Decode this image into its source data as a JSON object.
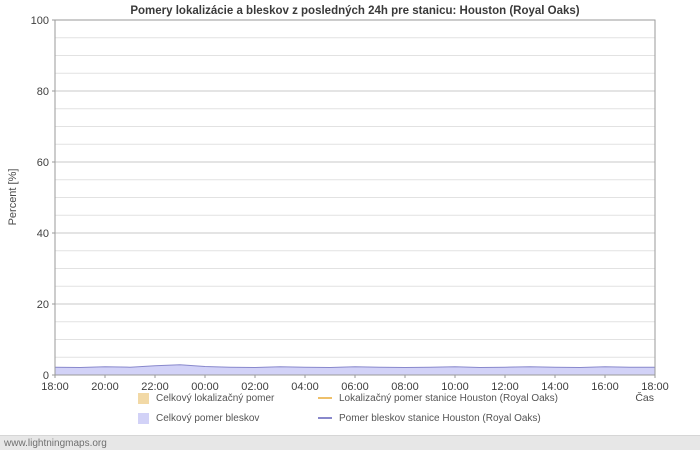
{
  "watermark": "www.lightningmaps.org",
  "chart_data": {
    "type": "area",
    "title": "Pomery lokalizácie a bleskov z posledných 24h pre stanicu: Houston (Royal Oaks)",
    "ylabel": "Percent  [%]",
    "xlabel": "Čas",
    "ylim": [
      0,
      100
    ],
    "y_major_ticks": [
      0,
      20,
      40,
      60,
      80,
      100
    ],
    "y_minor_step": 5,
    "x_tick_labels": [
      "18:00",
      "20:00",
      "22:00",
      "00:00",
      "02:00",
      "04:00",
      "06:00",
      "08:00",
      "10:00",
      "12:00",
      "14:00",
      "16:00",
      "18:00"
    ],
    "grid": true,
    "legend_position": "bottom",
    "colors": {
      "grid_minor": "#e2e2e2",
      "grid_major": "#c9c9c9",
      "plot_border": "#9a9a9a",
      "tick_text": "#404040"
    },
    "series": [
      {
        "name": "Celkový lokalizačný pomer",
        "type": "area",
        "color": "#f2d9a6",
        "values": [
          0,
          0,
          0,
          0,
          0,
          0,
          0,
          0,
          0,
          0,
          0,
          0,
          0,
          0,
          0,
          0,
          0,
          0,
          0,
          0,
          0,
          0,
          0,
          0,
          0
        ]
      },
      {
        "name": "Lokalizačný pomer stanice Houston (Royal Oaks)",
        "type": "line",
        "color": "#eec06a",
        "values": [
          0,
          0,
          0,
          0,
          0,
          0,
          0,
          0,
          0,
          0,
          0,
          0,
          0,
          0,
          0,
          0,
          0,
          0,
          0,
          0,
          0,
          0,
          0,
          0,
          0
        ]
      },
      {
        "name": "Celkový pomer bleskov",
        "type": "area",
        "color": "#d2d2f7",
        "values": [
          2.2,
          2.1,
          2.3,
          2.2,
          2.6,
          2.9,
          2.4,
          2.2,
          2.1,
          2.3,
          2.2,
          2.1,
          2.3,
          2.2,
          2.1,
          2.2,
          2.3,
          2.1,
          2.2,
          2.3,
          2.2,
          2.1,
          2.3,
          2.2,
          2.2
        ]
      },
      {
        "name": "Pomer bleskov stanice Houston (Royal Oaks)",
        "type": "line",
        "color": "#8888cc",
        "values": [
          2.2,
          2.1,
          2.3,
          2.2,
          2.6,
          2.9,
          2.4,
          2.2,
          2.1,
          2.3,
          2.2,
          2.1,
          2.3,
          2.2,
          2.1,
          2.2,
          2.3,
          2.1,
          2.2,
          2.3,
          2.2,
          2.1,
          2.3,
          2.2,
          2.2
        ]
      }
    ]
  }
}
